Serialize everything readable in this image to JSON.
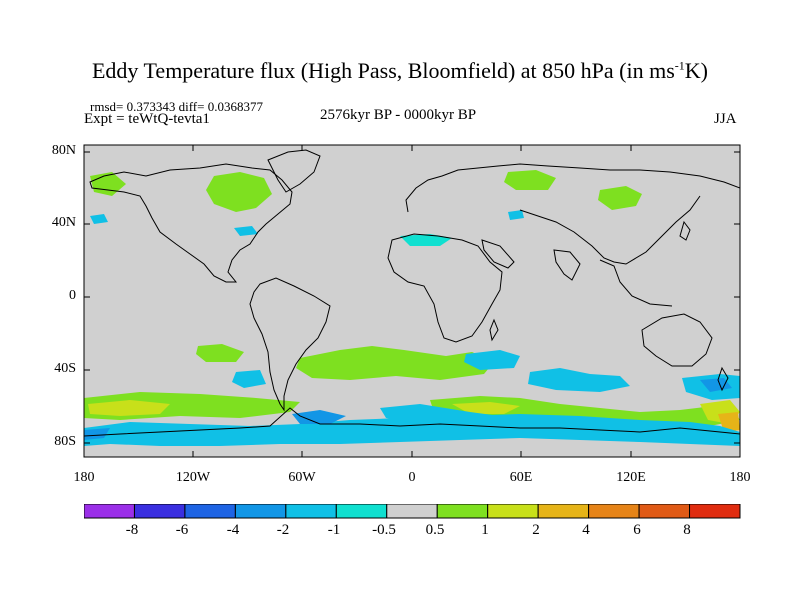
{
  "title": {
    "main": "Eddy Temperature flux (High Pass, Bloomfield) at 850 hPa (in ms",
    "sup": "-1",
    "tail": "K)"
  },
  "stats": "rmsd= 0.373343 diff= 0.0368377",
  "experiment": "Expt = teWtQ-tevta1",
  "period": "2576kyr BP - 0000kyr BP",
  "season": "JJA",
  "lat_labels": [
    "80N",
    "40N",
    "0",
    "40S",
    "80S"
  ],
  "lon_labels": [
    "180",
    "120W",
    "60W",
    "0",
    "60E",
    "120E",
    "180"
  ],
  "colorbar": {
    "labels": [
      "-8",
      "-6",
      "-4",
      "-2",
      "-1",
      "-0.5",
      "0.5",
      "1",
      "2",
      "4",
      "6",
      "8"
    ],
    "colors": [
      "#9b2fe8",
      "#3a2fe0",
      "#1e64e4",
      "#1296e6",
      "#10c0e6",
      "#10e0d0",
      "#d0d0d0",
      "#7ee020",
      "#c8e01a",
      "#e6b418",
      "#e68418",
      "#e05a16",
      "#e02c10"
    ]
  },
  "map": {
    "background": "#d0d0d0",
    "lat_range": [
      -90,
      90
    ],
    "lon_range": [
      -180,
      180
    ]
  }
}
